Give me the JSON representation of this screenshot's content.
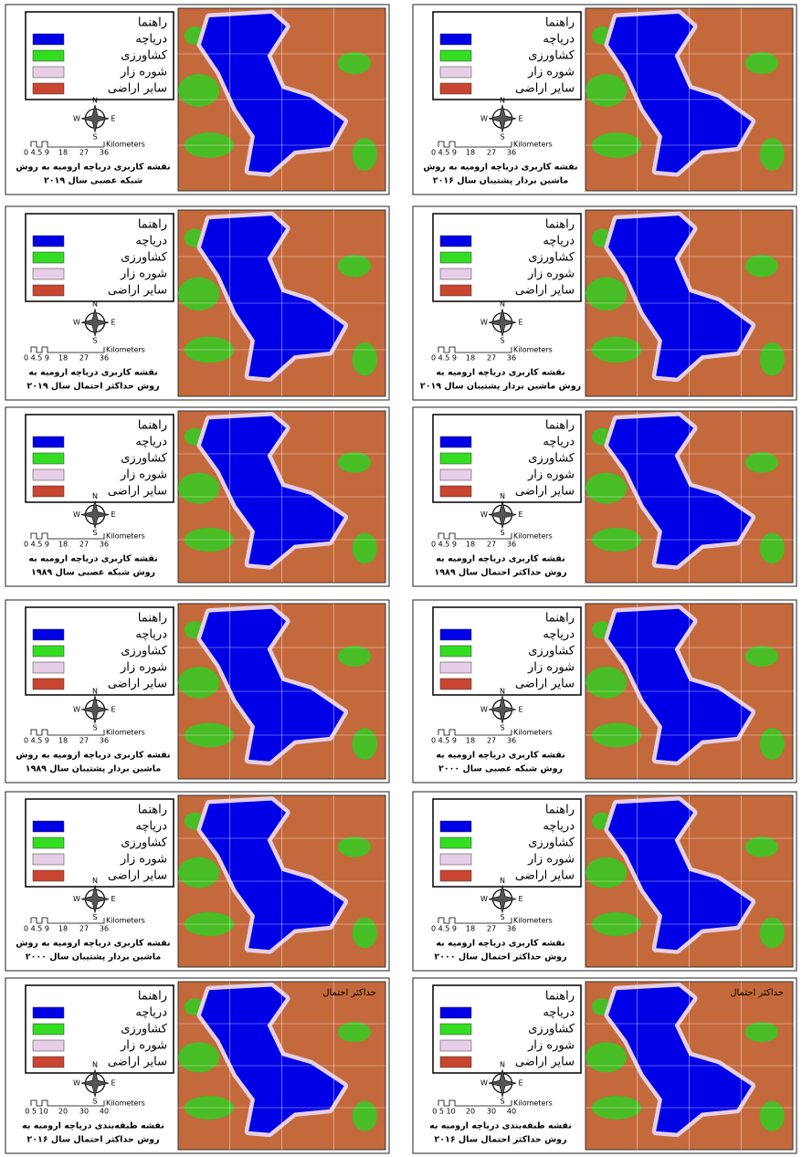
{
  "panels": [
    {
      "legend": {
        "title": "راهنما",
        "items": [
          {
            "label": "دریاچه",
            "color": "#0000e6"
          },
          {
            "label": "کشاورزی",
            "color": "#33dd22"
          },
          {
            "label": "شوره زار",
            "color": "#e6cfe6"
          },
          {
            "label": "سایر اراضی",
            "color": "#c8452f"
          }
        ]
      },
      "compass": {
        "n": "N",
        "e": "E",
        "s": "S",
        "w": "W"
      },
      "scale": {
        "labels": [
          "0 4.5 9",
          "18",
          "27",
          "36"
        ],
        "unit": "Kilometers"
      },
      "caption": [
        "نقشه کاربری دریاچه ارومیه به روش",
        "شبکه عصبی سال ۲۰۱۹"
      ]
    },
    {
      "legend": {
        "title": "راهنما",
        "items": [
          {
            "label": "دریاچه",
            "color": "#0000e6"
          },
          {
            "label": "کشاورزی",
            "color": "#33dd22"
          },
          {
            "label": "شوره زار",
            "color": "#e6cfe6"
          },
          {
            "label": "سایر اراضی",
            "color": "#c8452f"
          }
        ]
      },
      "compass": {
        "n": "N",
        "e": "E",
        "s": "S",
        "w": "W"
      },
      "scale": {
        "labels": [
          "0 4.5 9",
          "18",
          "27",
          "36"
        ],
        "unit": "Kilometers"
      },
      "caption": [
        "نقشه کاربری دریاچه ارومیه به روش",
        "ماشین بردار پشتیبان سال ۲۰۱۶"
      ]
    },
    {
      "legend": {
        "title": "راهنما",
        "items": [
          {
            "label": "دریاچه",
            "color": "#0000e6"
          },
          {
            "label": "کشاورزی",
            "color": "#33dd22"
          },
          {
            "label": "شوره زار",
            "color": "#e6cfe6"
          },
          {
            "label": "سایر اراضی",
            "color": "#c8452f"
          }
        ]
      },
      "compass": {
        "n": "N",
        "e": "E",
        "s": "S",
        "w": "W"
      },
      "scale": {
        "labels": [
          "0 4.5 9",
          "18",
          "27",
          "36"
        ],
        "unit": "Kilometers"
      },
      "caption": [
        "نقشه کاربری دریاچه ارومیه به",
        "روش حداکثر احتمال سال ۲۰۱۹"
      ]
    },
    {
      "legend": {
        "title": "راهنما",
        "items": [
          {
            "label": "دریاچه",
            "color": "#0000e6"
          },
          {
            "label": "کشاورزی",
            "color": "#33dd22"
          },
          {
            "label": "شوره زار",
            "color": "#e6cfe6"
          },
          {
            "label": "سایر اراضی",
            "color": "#c8452f"
          }
        ]
      },
      "compass": {
        "n": "N",
        "e": "E",
        "s": "S",
        "w": "W"
      },
      "scale": {
        "labels": [
          "0 4.5 9",
          "18",
          "27",
          "36"
        ],
        "unit": "Kilometers"
      },
      "caption": [
        "نقشه کاربری دریاچه ارومیه به",
        "روش ماشین بردار پشتیبان سال ۲۰۱۹"
      ]
    },
    {
      "legend": {
        "title": "راهنما",
        "items": [
          {
            "label": "دریاچه",
            "color": "#0000e6"
          },
          {
            "label": "کشاورزی",
            "color": "#33dd22"
          },
          {
            "label": "شوره زار",
            "color": "#e6cfe6"
          },
          {
            "label": "سایر اراضی",
            "color": "#c8452f"
          }
        ]
      },
      "compass": {
        "n": "N",
        "e": "E",
        "s": "S",
        "w": "W"
      },
      "scale": {
        "labels": [
          "0 4.5 9",
          "18",
          "27",
          "36"
        ],
        "unit": "Kilometers"
      },
      "caption": [
        "نقشه کاربری دریاچه ارومیه به",
        "روش شبکه عصبی سال ۱۹۸۹"
      ]
    },
    {
      "legend": {
        "title": "راهنما",
        "items": [
          {
            "label": "دریاچه",
            "color": "#0000e6"
          },
          {
            "label": "کشاورزی",
            "color": "#33dd22"
          },
          {
            "label": "شوره زار",
            "color": "#e6cfe6"
          },
          {
            "label": "سایر اراضی",
            "color": "#c8452f"
          }
        ]
      },
      "compass": {
        "n": "N",
        "e": "E",
        "s": "S",
        "w": "W"
      },
      "scale": {
        "labels": [
          "0 4.5 9",
          "18",
          "27",
          "36"
        ],
        "unit": "Kilometers"
      },
      "caption": [
        "نقشه کاربری دریاچه ارومیه به",
        "روش حداکثر احتمال سال ۱۹۸۹"
      ]
    },
    {
      "legend": {
        "title": "راهنما",
        "items": [
          {
            "label": "دریاچه",
            "color": "#0000e6"
          },
          {
            "label": "کشاورزی",
            "color": "#33dd22"
          },
          {
            "label": "شوره زار",
            "color": "#e6cfe6"
          },
          {
            "label": "سایر اراضی",
            "color": "#c8452f"
          }
        ]
      },
      "compass": {
        "n": "N",
        "e": "E",
        "s": "S",
        "w": "W"
      },
      "scale": {
        "labels": [
          "0 4.5 9",
          "18",
          "27",
          "36"
        ],
        "unit": "Kilometers"
      },
      "caption": [
        "نقشه کاربری دریاچه ارومیه به روش",
        "ماشین بردار پشتیبان سال ۱۹۸۹"
      ]
    },
    {
      "legend": {
        "title": "راهنما",
        "items": [
          {
            "label": "دریاچه",
            "color": "#0000e6"
          },
          {
            "label": "کشاورزی",
            "color": "#33dd22"
          },
          {
            "label": "شوره زار",
            "color": "#e6cfe6"
          },
          {
            "label": "سایر اراضی",
            "color": "#c8452f"
          }
        ]
      },
      "compass": {
        "n": "N",
        "e": "E",
        "s": "S",
        "w": "W"
      },
      "scale": {
        "labels": [
          "0 4.5 9",
          "18",
          "27",
          "36"
        ],
        "unit": "Kilometers"
      },
      "caption": [
        "نقشه کاربری دریاچه ارومیه به",
        "روش شبکه عصبی سال ۲۰۰۰"
      ]
    },
    {
      "legend": {
        "title": "راهنما",
        "items": [
          {
            "label": "دریاچه",
            "color": "#0000e6"
          },
          {
            "label": "کشاورزی",
            "color": "#33dd22"
          },
          {
            "label": "شوره زار",
            "color": "#e6cfe6"
          },
          {
            "label": "سایر اراضی",
            "color": "#c8452f"
          }
        ]
      },
      "compass": {
        "n": "N",
        "e": "E",
        "s": "S",
        "w": "W"
      },
      "scale": {
        "labels": [
          "0 4.5 9",
          "18",
          "27",
          "36"
        ],
        "unit": "Kilometers"
      },
      "caption": [
        "نقشه کاربری دریاچه ارومیه به روش",
        "ماشین بردار پشتیبان سال ۲۰۰۰"
      ]
    },
    {
      "legend": {
        "title": "راهنما",
        "items": [
          {
            "label": "دریاچه",
            "color": "#0000e6"
          },
          {
            "label": "کشاورزی",
            "color": "#33dd22"
          },
          {
            "label": "شوره زار",
            "color": "#e6cfe6"
          },
          {
            "label": "سایر اراضی",
            "color": "#c8452f"
          }
        ]
      },
      "compass": {
        "n": "N",
        "e": "E",
        "s": "S",
        "w": "W"
      },
      "scale": {
        "labels": [
          "0 4.5 9",
          "18",
          "27",
          "36"
        ],
        "unit": "Kilometers"
      },
      "caption": [
        "نقشه کاربری دریاچه ارومیه به",
        "روش حداکثر احتمال سال ۲۰۰۰"
      ]
    },
    {
      "legend": {
        "title": "راهنما",
        "items": [
          {
            "label": "دریاچه",
            "color": "#0000e6"
          },
          {
            "label": "کشاورزی",
            "color": "#33dd22"
          },
          {
            "label": "شوره زار",
            "color": "#e6cfe6"
          },
          {
            "label": "سایر اراضی",
            "color": "#c8452f"
          }
        ]
      },
      "compass": {
        "n": "N",
        "e": "E",
        "s": "S",
        "w": "W"
      },
      "scale": {
        "labels": [
          "0 5 10",
          "20",
          "30",
          "40"
        ],
        "unit": "Kilometers"
      },
      "caption": [
        "نقشه طبقه‌بندی دریاچه ارومیه به",
        "روش حداکثر احتمال سال ۲۰۱۶"
      ],
      "map_label": "حداکثر احتمال"
    },
    {
      "legend": {
        "title": "راهنما",
        "items": [
          {
            "label": "دریاچه",
            "color": "#0000e6"
          },
          {
            "label": "کشاورزی",
            "color": "#33dd22"
          },
          {
            "label": "شوره زار",
            "color": "#e6cfe6"
          },
          {
            "label": "سایر اراضی",
            "color": "#c8452f"
          }
        ]
      },
      "compass": {
        "n": "N",
        "e": "E",
        "s": "S",
        "w": "W"
      },
      "scale": {
        "labels": [
          "0 5 10",
          "20",
          "30",
          "40"
        ],
        "unit": "Kilometers"
      },
      "caption": [
        "نقشه طبقه‌بندی دریاچه ارومیه به",
        "روش حداکثر احتمال سال ۲۰۱۶"
      ],
      "map_label": "حداکثر احتمال"
    }
  ]
}
